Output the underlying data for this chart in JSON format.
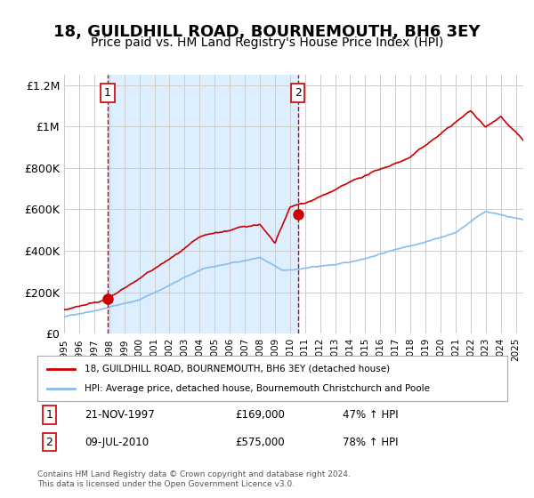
{
  "title": "18, GUILDHILL ROAD, BOURNEMOUTH, BH6 3EY",
  "subtitle": "Price paid vs. HM Land Registry's House Price Index (HPI)",
  "title_fontsize": 13,
  "subtitle_fontsize": 10,
  "background_color": "#ffffff",
  "plot_bg_color": "#ffffff",
  "shaded_region_color": "#ddeeff",
  "grid_color": "#cccccc",
  "red_line_color": "#cc0000",
  "blue_line_color": "#88bbee",
  "purchase1_x": 1997.89,
  "purchase1_y": 169000,
  "purchase2_x": 2010.52,
  "purchase2_y": 575000,
  "dashed_line_color": "#cc0000",
  "legend_label_red": "18, GUILDHILL ROAD, BOURNEMOUTH, BH6 3EY (detached house)",
  "legend_label_blue": "HPI: Average price, detached house, Bournemouth Christchurch and Poole",
  "note1_num": "1",
  "note1_date": "21-NOV-1997",
  "note1_price": "£169,000",
  "note1_hpi": "47% ↑ HPI",
  "note2_num": "2",
  "note2_date": "09-JUL-2010",
  "note2_price": "£575,000",
  "note2_hpi": "78% ↑ HPI",
  "footer": "Contains HM Land Registry data © Crown copyright and database right 2024.\nThis data is licensed under the Open Government Licence v3.0.",
  "ylim": [
    0,
    1250000
  ],
  "xlim_start": 1995.0,
  "xlim_end": 2025.5,
  "yticks": [
    0,
    200000,
    400000,
    600000,
    800000,
    1000000,
    1200000
  ],
  "ytick_labels": [
    "£0",
    "£200K",
    "£400K",
    "£600K",
    "£800K",
    "£1M",
    "£1.2M"
  ],
  "xtick_years": [
    1995,
    1996,
    1997,
    1998,
    1999,
    2000,
    2001,
    2002,
    2003,
    2004,
    2005,
    2006,
    2007,
    2008,
    2009,
    2010,
    2011,
    2012,
    2013,
    2014,
    2015,
    2016,
    2017,
    2018,
    2019,
    2020,
    2021,
    2022,
    2023,
    2024,
    2025
  ]
}
